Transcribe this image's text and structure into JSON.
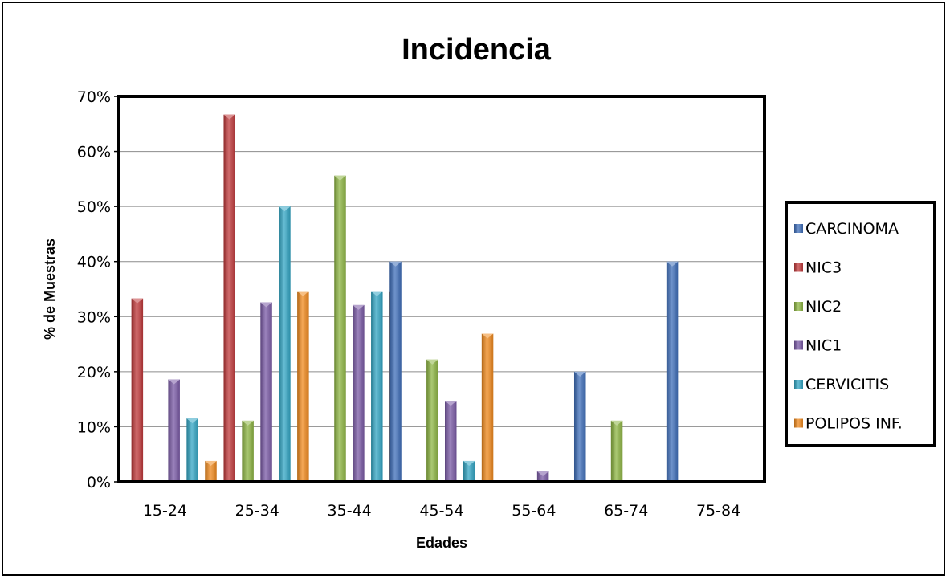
{
  "chart_data": {
    "type": "bar",
    "title": "Incidencia",
    "xlabel": "Edades",
    "ylabel": "% de Muestras",
    "categories": [
      "15-24",
      "25-34",
      "35-44",
      "45-54",
      "55-64",
      "65-74",
      "75-84"
    ],
    "ylim": [
      0,
      70
    ],
    "yticks": [
      "0%",
      "10%",
      "20%",
      "30%",
      "40%",
      "50%",
      "60%",
      "70%"
    ],
    "grid": true,
    "legend_position": "right",
    "series": [
      {
        "name": "CARCINOMA",
        "color": "#3f6fba",
        "values": [
          0,
          0,
          0,
          40,
          0,
          20,
          40
        ]
      },
      {
        "name": "NIC3",
        "color": "#c0393b",
        "values": [
          33.3,
          66.7,
          0,
          0,
          0,
          0,
          0
        ]
      },
      {
        "name": "NIC2",
        "color": "#8db543",
        "values": [
          0,
          11.1,
          55.6,
          22.2,
          0,
          11.1,
          0
        ]
      },
      {
        "name": "NIC1",
        "color": "#7a5aa6",
        "values": [
          18.6,
          32.6,
          32.1,
          14.7,
          1.9,
          0,
          0
        ]
      },
      {
        "name": "CERVICITIS",
        "color": "#33a6c4",
        "values": [
          11.5,
          50,
          34.6,
          3.8,
          0,
          0,
          0
        ]
      },
      {
        "name": "POLIPOS INF.",
        "color": "#f08a1e",
        "values": [
          3.8,
          34.6,
          34.6,
          26.9,
          0,
          0,
          0
        ]
      }
    ]
  }
}
